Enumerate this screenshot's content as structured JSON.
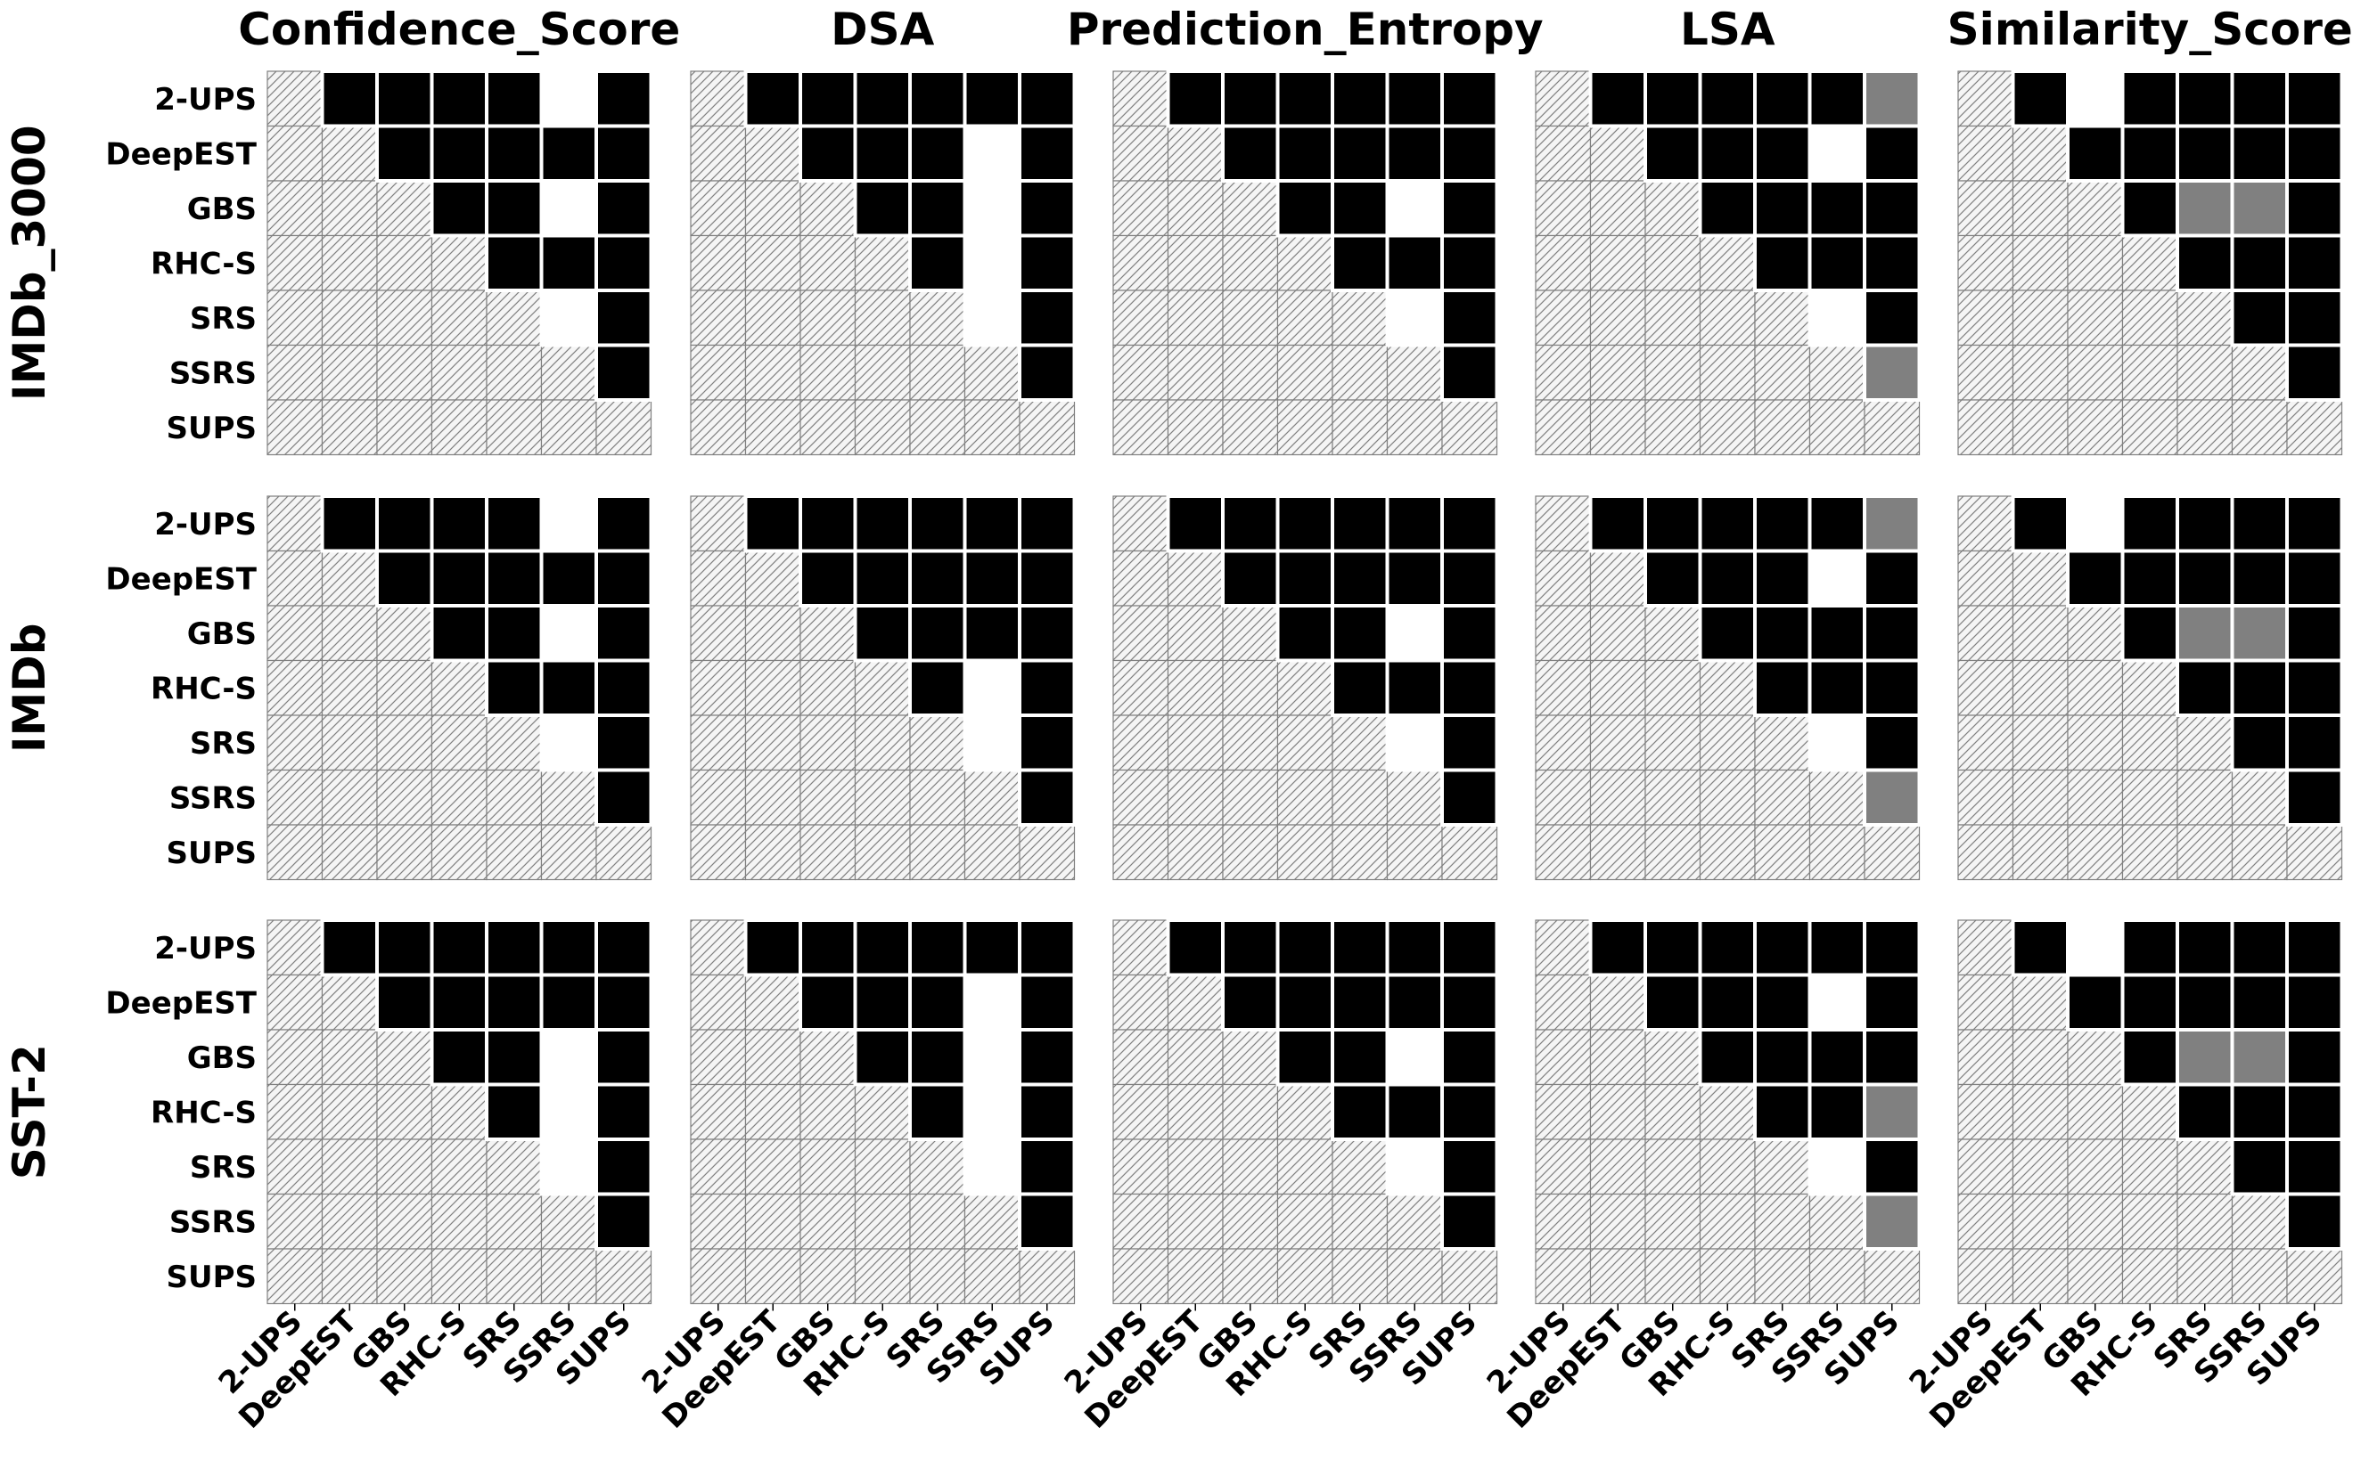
{
  "chart_data": {
    "type": "heatmap",
    "encoding": {
      "hatched": "diagonal",
      "black": "black",
      "gray": "gray",
      "white": "white"
    },
    "colors": {
      "black": "#000000",
      "gray": "#808080",
      "white": "#ffffff",
      "hatch_bg": "#f5f5f5",
      "hatch_line": "#808080",
      "grid": "#808080"
    },
    "labels": [
      "2-UPS",
      "DeepEST",
      "GBS",
      "RHC-S",
      "SRS",
      "SSRS",
      "SUPS"
    ],
    "columns": [
      "Confidence_Score",
      "DSA",
      "Prediction_Entropy",
      "LSA",
      "Similarity_Score"
    ],
    "rows": [
      "IMDb_3000",
      "IMDb",
      "SST-2"
    ],
    "panels": [
      [
        [
          "hatched",
          "black",
          "black",
          "black",
          "black",
          "white",
          "black",
          "hatched",
          "hatched",
          "black",
          "black",
          "black",
          "black",
          "black",
          "hatched",
          "hatched",
          "hatched",
          "black",
          "black",
          "white",
          "black",
          "hatched",
          "hatched",
          "hatched",
          "hatched",
          "black",
          "black",
          "black",
          "hatched",
          "hatched",
          "hatched",
          "hatched",
          "hatched",
          "white",
          "black",
          "hatched",
          "hatched",
          "hatched",
          "hatched",
          "hatched",
          "hatched",
          "black",
          "hatched",
          "hatched",
          "hatched",
          "hatched",
          "hatched",
          "hatched",
          "hatched"
        ],
        [
          "hatched",
          "black",
          "black",
          "black",
          "black",
          "black",
          "black",
          "hatched",
          "hatched",
          "black",
          "black",
          "black",
          "white",
          "black",
          "hatched",
          "hatched",
          "hatched",
          "black",
          "black",
          "white",
          "black",
          "hatched",
          "hatched",
          "hatched",
          "hatched",
          "black",
          "white",
          "black",
          "hatched",
          "hatched",
          "hatched",
          "hatched",
          "hatched",
          "white",
          "black",
          "hatched",
          "hatched",
          "hatched",
          "hatched",
          "hatched",
          "hatched",
          "black",
          "hatched",
          "hatched",
          "hatched",
          "hatched",
          "hatched",
          "hatched",
          "hatched"
        ],
        [
          "hatched",
          "black",
          "black",
          "black",
          "black",
          "black",
          "black",
          "hatched",
          "hatched",
          "black",
          "black",
          "black",
          "black",
          "black",
          "hatched",
          "hatched",
          "hatched",
          "black",
          "black",
          "white",
          "black",
          "hatched",
          "hatched",
          "hatched",
          "hatched",
          "black",
          "black",
          "black",
          "hatched",
          "hatched",
          "hatched",
          "hatched",
          "hatched",
          "white",
          "black",
          "hatched",
          "hatched",
          "hatched",
          "hatched",
          "hatched",
          "hatched",
          "black",
          "hatched",
          "hatched",
          "hatched",
          "hatched",
          "hatched",
          "hatched",
          "hatched"
        ],
        [
          "hatched",
          "black",
          "black",
          "black",
          "black",
          "black",
          "gray",
          "hatched",
          "hatched",
          "black",
          "black",
          "black",
          "white",
          "black",
          "hatched",
          "hatched",
          "hatched",
          "black",
          "black",
          "black",
          "black",
          "hatched",
          "hatched",
          "hatched",
          "hatched",
          "black",
          "black",
          "black",
          "hatched",
          "hatched",
          "hatched",
          "hatched",
          "hatched",
          "white",
          "black",
          "hatched",
          "hatched",
          "hatched",
          "hatched",
          "hatched",
          "hatched",
          "gray",
          "hatched",
          "hatched",
          "hatched",
          "hatched",
          "hatched",
          "hatched",
          "hatched"
        ],
        [
          "hatched",
          "black",
          "white",
          "black",
          "black",
          "black",
          "black",
          "hatched",
          "hatched",
          "black",
          "black",
          "black",
          "black",
          "black",
          "hatched",
          "hatched",
          "hatched",
          "black",
          "gray",
          "gray",
          "black",
          "hatched",
          "hatched",
          "hatched",
          "hatched",
          "black",
          "black",
          "black",
          "hatched",
          "hatched",
          "hatched",
          "hatched",
          "hatched",
          "black",
          "black",
          "hatched",
          "hatched",
          "hatched",
          "hatched",
          "hatched",
          "hatched",
          "black",
          "hatched",
          "hatched",
          "hatched",
          "hatched",
          "hatched",
          "hatched",
          "hatched"
        ]
      ],
      [
        [
          "hatched",
          "black",
          "black",
          "black",
          "black",
          "white",
          "black",
          "hatched",
          "hatched",
          "black",
          "black",
          "black",
          "black",
          "black",
          "hatched",
          "hatched",
          "hatched",
          "black",
          "black",
          "white",
          "black",
          "hatched",
          "hatched",
          "hatched",
          "hatched",
          "black",
          "black",
          "black",
          "hatched",
          "hatched",
          "hatched",
          "hatched",
          "hatched",
          "white",
          "black",
          "hatched",
          "hatched",
          "hatched",
          "hatched",
          "hatched",
          "hatched",
          "black",
          "hatched",
          "hatched",
          "hatched",
          "hatched",
          "hatched",
          "hatched",
          "hatched"
        ],
        [
          "hatched",
          "black",
          "black",
          "black",
          "black",
          "black",
          "black",
          "hatched",
          "hatched",
          "black",
          "black",
          "black",
          "black",
          "black",
          "hatched",
          "hatched",
          "hatched",
          "black",
          "black",
          "black",
          "black",
          "hatched",
          "hatched",
          "hatched",
          "hatched",
          "black",
          "white",
          "black",
          "hatched",
          "hatched",
          "hatched",
          "hatched",
          "hatched",
          "white",
          "black",
          "hatched",
          "hatched",
          "hatched",
          "hatched",
          "hatched",
          "hatched",
          "black",
          "hatched",
          "hatched",
          "hatched",
          "hatched",
          "hatched",
          "hatched",
          "hatched"
        ],
        [
          "hatched",
          "black",
          "black",
          "black",
          "black",
          "black",
          "black",
          "hatched",
          "hatched",
          "black",
          "black",
          "black",
          "black",
          "black",
          "hatched",
          "hatched",
          "hatched",
          "black",
          "black",
          "white",
          "black",
          "hatched",
          "hatched",
          "hatched",
          "hatched",
          "black",
          "black",
          "black",
          "hatched",
          "hatched",
          "hatched",
          "hatched",
          "hatched",
          "white",
          "black",
          "hatched",
          "hatched",
          "hatched",
          "hatched",
          "hatched",
          "hatched",
          "black",
          "hatched",
          "hatched",
          "hatched",
          "hatched",
          "hatched",
          "hatched",
          "hatched"
        ],
        [
          "hatched",
          "black",
          "black",
          "black",
          "black",
          "black",
          "gray",
          "hatched",
          "hatched",
          "black",
          "black",
          "black",
          "white",
          "black",
          "hatched",
          "hatched",
          "hatched",
          "black",
          "black",
          "black",
          "black",
          "hatched",
          "hatched",
          "hatched",
          "hatched",
          "black",
          "black",
          "black",
          "hatched",
          "hatched",
          "hatched",
          "hatched",
          "hatched",
          "white",
          "black",
          "hatched",
          "hatched",
          "hatched",
          "hatched",
          "hatched",
          "hatched",
          "gray",
          "hatched",
          "hatched",
          "hatched",
          "hatched",
          "hatched",
          "hatched",
          "hatched"
        ],
        [
          "hatched",
          "black",
          "white",
          "black",
          "black",
          "black",
          "black",
          "hatched",
          "hatched",
          "black",
          "black",
          "black",
          "black",
          "black",
          "hatched",
          "hatched",
          "hatched",
          "black",
          "gray",
          "gray",
          "black",
          "hatched",
          "hatched",
          "hatched",
          "hatched",
          "black",
          "black",
          "black",
          "hatched",
          "hatched",
          "hatched",
          "hatched",
          "hatched",
          "black",
          "black",
          "hatched",
          "hatched",
          "hatched",
          "hatched",
          "hatched",
          "hatched",
          "black",
          "hatched",
          "hatched",
          "hatched",
          "hatched",
          "hatched",
          "hatched",
          "hatched"
        ]
      ],
      [
        [
          "hatched",
          "black",
          "black",
          "black",
          "black",
          "black",
          "black",
          "hatched",
          "hatched",
          "black",
          "black",
          "black",
          "black",
          "black",
          "hatched",
          "hatched",
          "hatched",
          "black",
          "black",
          "white",
          "black",
          "hatched",
          "hatched",
          "hatched",
          "hatched",
          "black",
          "white",
          "black",
          "hatched",
          "hatched",
          "hatched",
          "hatched",
          "hatched",
          "white",
          "black",
          "hatched",
          "hatched",
          "hatched",
          "hatched",
          "hatched",
          "hatched",
          "black",
          "hatched",
          "hatched",
          "hatched",
          "hatched",
          "hatched",
          "hatched",
          "hatched"
        ],
        [
          "hatched",
          "black",
          "black",
          "black",
          "black",
          "black",
          "black",
          "hatched",
          "hatched",
          "black",
          "black",
          "black",
          "white",
          "black",
          "hatched",
          "hatched",
          "hatched",
          "black",
          "black",
          "white",
          "black",
          "hatched",
          "hatched",
          "hatched",
          "hatched",
          "black",
          "white",
          "black",
          "hatched",
          "hatched",
          "hatched",
          "hatched",
          "hatched",
          "white",
          "black",
          "hatched",
          "hatched",
          "hatched",
          "hatched",
          "hatched",
          "hatched",
          "black",
          "hatched",
          "hatched",
          "hatched",
          "hatched",
          "hatched",
          "hatched",
          "hatched"
        ],
        [
          "hatched",
          "black",
          "black",
          "black",
          "black",
          "black",
          "black",
          "hatched",
          "hatched",
          "black",
          "black",
          "black",
          "black",
          "black",
          "hatched",
          "hatched",
          "hatched",
          "black",
          "black",
          "white",
          "black",
          "hatched",
          "hatched",
          "hatched",
          "hatched",
          "black",
          "black",
          "black",
          "hatched",
          "hatched",
          "hatched",
          "hatched",
          "hatched",
          "white",
          "black",
          "hatched",
          "hatched",
          "hatched",
          "hatched",
          "hatched",
          "hatched",
          "black",
          "hatched",
          "hatched",
          "hatched",
          "hatched",
          "hatched",
          "hatched",
          "hatched"
        ],
        [
          "hatched",
          "black",
          "black",
          "black",
          "black",
          "black",
          "black",
          "hatched",
          "hatched",
          "black",
          "black",
          "black",
          "white",
          "black",
          "hatched",
          "hatched",
          "hatched",
          "black",
          "black",
          "black",
          "black",
          "hatched",
          "hatched",
          "hatched",
          "hatched",
          "black",
          "black",
          "gray",
          "hatched",
          "hatched",
          "hatched",
          "hatched",
          "hatched",
          "white",
          "black",
          "hatched",
          "hatched",
          "hatched",
          "hatched",
          "hatched",
          "hatched",
          "gray",
          "hatched",
          "hatched",
          "hatched",
          "hatched",
          "hatched",
          "hatched",
          "hatched"
        ],
        [
          "hatched",
          "black",
          "white",
          "black",
          "black",
          "black",
          "black",
          "hatched",
          "hatched",
          "black",
          "black",
          "black",
          "black",
          "black",
          "hatched",
          "hatched",
          "hatched",
          "black",
          "gray",
          "gray",
          "black",
          "hatched",
          "hatched",
          "hatched",
          "hatched",
          "black",
          "black",
          "black",
          "hatched",
          "hatched",
          "hatched",
          "hatched",
          "hatched",
          "black",
          "black",
          "hatched",
          "hatched",
          "hatched",
          "hatched",
          "hatched",
          "hatched",
          "black",
          "hatched",
          "hatched",
          "hatched",
          "hatched",
          "hatched",
          "hatched",
          "hatched"
        ]
      ]
    ]
  }
}
